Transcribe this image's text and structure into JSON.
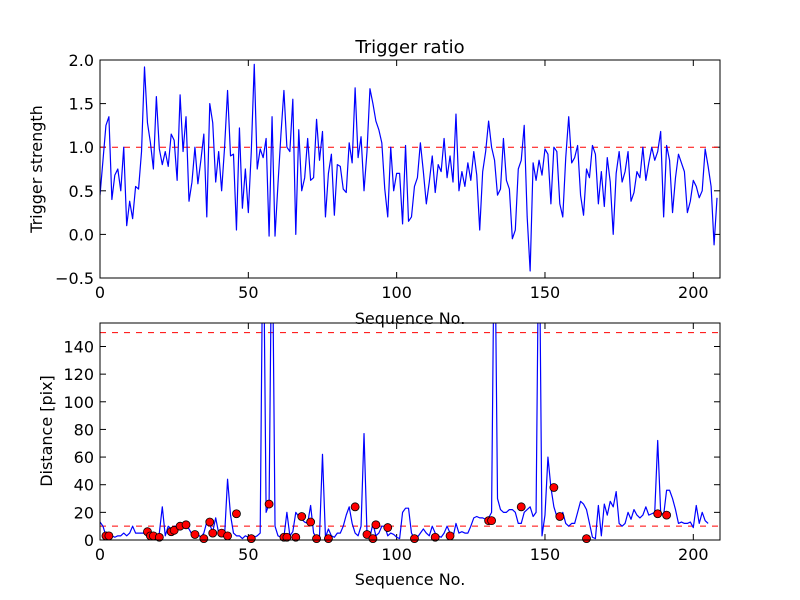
{
  "chart_data": [
    {
      "type": "line",
      "title": "Trigger ratio",
      "xlabel": "Sequence No.",
      "ylabel": "Trigger strength",
      "xlim": [
        0,
        209
      ],
      "ylim": [
        -0.5,
        2.0
      ],
      "xticks": [
        0,
        50,
        100,
        150,
        200
      ],
      "xtick_labels": [
        "0",
        "50",
        "100",
        "150",
        "200"
      ],
      "yticks": [
        -0.5,
        0.0,
        0.5,
        1.0,
        1.5,
        2.0
      ],
      "ytick_labels": [
        "−0.5",
        "0.0",
        "0.5",
        "1.0",
        "1.5",
        "2.0"
      ],
      "threshold": 1.0,
      "line_color": "#0000ff",
      "threshold_color": "#ff0000",
      "series": [
        {
          "name": "trigger strength",
          "x_start": 0,
          "values": [
            0.45,
            0.85,
            1.25,
            1.35,
            0.4,
            0.68,
            0.75,
            0.5,
            1.0,
            0.1,
            0.38,
            0.18,
            0.55,
            0.52,
            0.95,
            1.92,
            1.28,
            1.05,
            0.75,
            1.58,
            0.98,
            0.8,
            0.95,
            0.78,
            1.15,
            1.08,
            0.62,
            1.6,
            0.95,
            1.35,
            0.38,
            0.6,
            1.0,
            0.58,
            0.85,
            1.15,
            0.2,
            1.5,
            1.28,
            0.6,
            0.95,
            0.5,
            1.0,
            1.65,
            0.9,
            0.92,
            0.05,
            1.22,
            0.3,
            0.75,
            0.25,
            0.95,
            1.95,
            0.75,
            0.98,
            0.88,
            1.1,
            -0.02,
            1.35,
            -0.02,
            0.58,
            1.15,
            1.65,
            1.0,
            0.95,
            1.55,
            0.0,
            1.2,
            0.5,
            0.65,
            1.1,
            0.62,
            0.65,
            1.32,
            0.85,
            1.18,
            0.2,
            0.7,
            0.92,
            0.22,
            0.8,
            0.78,
            0.52,
            0.48,
            1.05,
            0.82,
            1.68,
            0.88,
            1.12,
            0.5,
            0.95,
            1.67,
            1.5,
            1.3,
            1.2,
            1.05,
            0.52,
            0.2,
            1.0,
            0.5,
            0.7,
            0.7,
            0.12,
            1.02,
            0.15,
            0.2,
            0.55,
            0.65,
            1.05,
            0.72,
            0.35,
            0.6,
            0.9,
            0.48,
            0.8,
            0.72,
            1.1,
            0.65,
            0.9,
            0.6,
            1.38,
            0.5,
            0.72,
            0.55,
            0.82,
            0.62,
            0.95,
            0.68,
            0.05,
            0.72,
            0.95,
            1.3,
            1.0,
            0.85,
            0.45,
            0.52,
            1.1,
            0.62,
            0.52,
            -0.05,
            0.05,
            0.75,
            0.85,
            1.25,
            0.2,
            -0.42,
            0.82,
            0.62,
            0.85,
            0.68,
            0.98,
            0.92,
            0.35,
            1.0,
            0.95,
            0.35,
            0.2,
            0.88,
            1.35,
            0.82,
            0.88,
            1.02,
            0.45,
            0.22,
            0.75,
            0.65,
            1.02,
            0.92,
            0.35,
            0.72,
            0.32,
            0.88,
            0.6,
            0.0,
            0.7,
            0.95,
            0.6,
            0.72,
            0.95,
            0.38,
            0.48,
            0.72,
            0.65,
            1.0,
            0.62,
            0.82,
            1.0,
            0.85,
            0.95,
            1.18,
            0.2,
            1.02,
            0.85,
            0.25,
            0.65,
            0.92,
            0.82,
            0.72,
            0.25,
            0.38,
            0.62,
            0.55,
            0.42,
            0.5,
            0.98,
            0.78,
            0.55,
            -0.12,
            0.42
          ]
        }
      ]
    },
    {
      "type": "line",
      "title": "",
      "xlabel": "Sequence No.",
      "ylabel": "Distance [pix]",
      "xlim": [
        0,
        209
      ],
      "ylim": [
        0,
        157
      ],
      "xticks": [
        0,
        50,
        100,
        150,
        200
      ],
      "xtick_labels": [
        "0",
        "50",
        "100",
        "150",
        "200"
      ],
      "yticks": [
        0,
        20,
        40,
        60,
        80,
        100,
        120,
        140
      ],
      "ytick_labels": [
        "0",
        "20",
        "40",
        "60",
        "80",
        "100",
        "120",
        "140"
      ],
      "thresholds": [
        10,
        150
      ],
      "line_color": "#0000ff",
      "threshold_color": "#ff0000",
      "marker_color": "#ff0000",
      "series": [
        {
          "name": "distance",
          "x_start": 0,
          "values": [
            13,
            10,
            3,
            3,
            3,
            2,
            3,
            3,
            5,
            3,
            5,
            10,
            5,
            5,
            5,
            5,
            2,
            2,
            3,
            2,
            5,
            24,
            3,
            10,
            8,
            10,
            10,
            10,
            11,
            10,
            8,
            4,
            3,
            4,
            2,
            5,
            13,
            11,
            6,
            16,
            5,
            3,
            3,
            44,
            18,
            5,
            3,
            3,
            1,
            3,
            2,
            1,
            2,
            3,
            5,
            250,
            20,
            26,
            250,
            10,
            3,
            2,
            2,
            20,
            3,
            6,
            20,
            17,
            15,
            13,
            12,
            25,
            5,
            2,
            3,
            62,
            2,
            8,
            3,
            2,
            5,
            5,
            10,
            18,
            24,
            12,
            5,
            3,
            10,
            77,
            5,
            2,
            12,
            3,
            5,
            10,
            10,
            3,
            5,
            4,
            2,
            1,
            20,
            23,
            23,
            5,
            1,
            2,
            5,
            8,
            5,
            3,
            10,
            5,
            3,
            2,
            5,
            10,
            5,
            2,
            12,
            5,
            6,
            5,
            5,
            10,
            16,
            17,
            16,
            16,
            15,
            16,
            20,
            250,
            30,
            22,
            20,
            20,
            22,
            22,
            20,
            12,
            12,
            20,
            22,
            24,
            17,
            20,
            250,
            3,
            18,
            60,
            38,
            24,
            17,
            16,
            20,
            12,
            10,
            12,
            12,
            20,
            28,
            26,
            22,
            12,
            2,
            1,
            25,
            3,
            26,
            18,
            28,
            24,
            35,
            12,
            10,
            12,
            20,
            15,
            22,
            18,
            16,
            18,
            24,
            18,
            19,
            20,
            72,
            20,
            18,
            36,
            36,
            30,
            22,
            12,
            13,
            12,
            12,
            13,
            9,
            25,
            12,
            20,
            14,
            12
          ]
        },
        {
          "name": "matched points",
          "marker": "circle",
          "points": [
            [
              2,
              3
            ],
            [
              3,
              3
            ],
            [
              16,
              6
            ],
            [
              17,
              3
            ],
            [
              18,
              3
            ],
            [
              20,
              2
            ],
            [
              24,
              6
            ],
            [
              25,
              7
            ],
            [
              27,
              10
            ],
            [
              29,
              11
            ],
            [
              32,
              4
            ],
            [
              35,
              1
            ],
            [
              37,
              13
            ],
            [
              38,
              5
            ],
            [
              41,
              5
            ],
            [
              43,
              3
            ],
            [
              46,
              19
            ],
            [
              51,
              1
            ],
            [
              57,
              26
            ],
            [
              62,
              2
            ],
            [
              63,
              2
            ],
            [
              66,
              2
            ],
            [
              68,
              17
            ],
            [
              71,
              13
            ],
            [
              73,
              1
            ],
            [
              77,
              1
            ],
            [
              86,
              24
            ],
            [
              90,
              4
            ],
            [
              92,
              1
            ],
            [
              93,
              11
            ],
            [
              97,
              9
            ],
            [
              106,
              1
            ],
            [
              113,
              2
            ],
            [
              118,
              3
            ],
            [
              131,
              14
            ],
            [
              132,
              14
            ],
            [
              142,
              24
            ],
            [
              153,
              38
            ],
            [
              155,
              17
            ],
            [
              164,
              1
            ],
            [
              188,
              19
            ],
            [
              191,
              18
            ]
          ]
        }
      ]
    }
  ]
}
